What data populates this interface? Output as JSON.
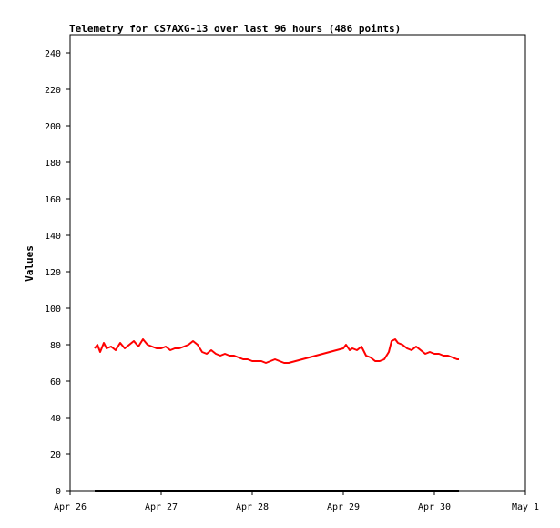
{
  "chart_data": {
    "type": "line",
    "title": "Telemetry for CS7AXG-13 over last 96 hours (486 points)",
    "xlabel": "",
    "ylabel": "Values",
    "ylim": [
      0,
      250
    ],
    "xlim": [
      "Apr 26",
      "May 1"
    ],
    "x_ticks": [
      "Apr 26",
      "Apr 27",
      "Apr 28",
      "Apr 29",
      "Apr 30",
      "May 1"
    ],
    "y_ticks": [
      0,
      20,
      40,
      60,
      80,
      100,
      120,
      140,
      160,
      180,
      200,
      220,
      240
    ],
    "grid": false,
    "series": [
      {
        "color": "#ff0000",
        "points": [
          [
            0.27,
            78
          ],
          [
            0.3,
            80
          ],
          [
            0.33,
            76
          ],
          [
            0.37,
            81
          ],
          [
            0.4,
            78
          ],
          [
            0.45,
            79
          ],
          [
            0.5,
            77
          ],
          [
            0.55,
            81
          ],
          [
            0.6,
            78
          ],
          [
            0.65,
            80
          ],
          [
            0.7,
            82
          ],
          [
            0.75,
            79
          ],
          [
            0.8,
            83
          ],
          [
            0.85,
            80
          ],
          [
            0.9,
            79
          ],
          [
            0.95,
            78
          ],
          [
            1.0,
            78
          ],
          [
            1.05,
            79
          ],
          [
            1.1,
            77
          ],
          [
            1.15,
            78
          ],
          [
            1.2,
            78
          ],
          [
            1.25,
            79
          ],
          [
            1.3,
            80
          ],
          [
            1.35,
            82
          ],
          [
            1.4,
            80
          ],
          [
            1.45,
            76
          ],
          [
            1.5,
            75
          ],
          [
            1.55,
            77
          ],
          [
            1.6,
            75
          ],
          [
            1.65,
            74
          ],
          [
            1.7,
            75
          ],
          [
            1.75,
            74
          ],
          [
            1.8,
            74
          ],
          [
            1.85,
            73
          ],
          [
            1.9,
            72
          ],
          [
            1.95,
            72
          ],
          [
            2.0,
            71
          ],
          [
            2.05,
            71
          ],
          [
            2.1,
            71
          ],
          [
            2.15,
            70
          ],
          [
            2.2,
            71
          ],
          [
            2.25,
            72
          ],
          [
            2.3,
            71
          ],
          [
            2.35,
            70
          ],
          [
            2.4,
            70
          ],
          [
            3.0,
            78
          ],
          [
            3.03,
            80
          ],
          [
            3.07,
            77
          ],
          [
            3.1,
            78
          ],
          [
            3.15,
            77
          ],
          [
            3.2,
            79
          ],
          [
            3.25,
            74
          ],
          [
            3.3,
            73
          ],
          [
            3.35,
            71
          ],
          [
            3.4,
            71
          ],
          [
            3.45,
            72
          ],
          [
            3.5,
            76
          ],
          [
            3.53,
            82
          ],
          [
            3.57,
            83
          ],
          [
            3.6,
            81
          ],
          [
            3.65,
            80
          ],
          [
            3.7,
            78
          ],
          [
            3.75,
            77
          ],
          [
            3.8,
            79
          ],
          [
            3.85,
            77
          ],
          [
            3.9,
            75
          ],
          [
            3.95,
            76
          ],
          [
            4.0,
            75
          ],
          [
            4.05,
            75
          ],
          [
            4.1,
            74
          ],
          [
            4.15,
            74
          ],
          [
            4.2,
            73
          ],
          [
            4.25,
            72
          ],
          [
            4.27,
            72
          ]
        ]
      },
      {
        "color": "#000000",
        "points": [
          [
            0.27,
            0
          ],
          [
            4.27,
            0
          ]
        ]
      }
    ]
  }
}
